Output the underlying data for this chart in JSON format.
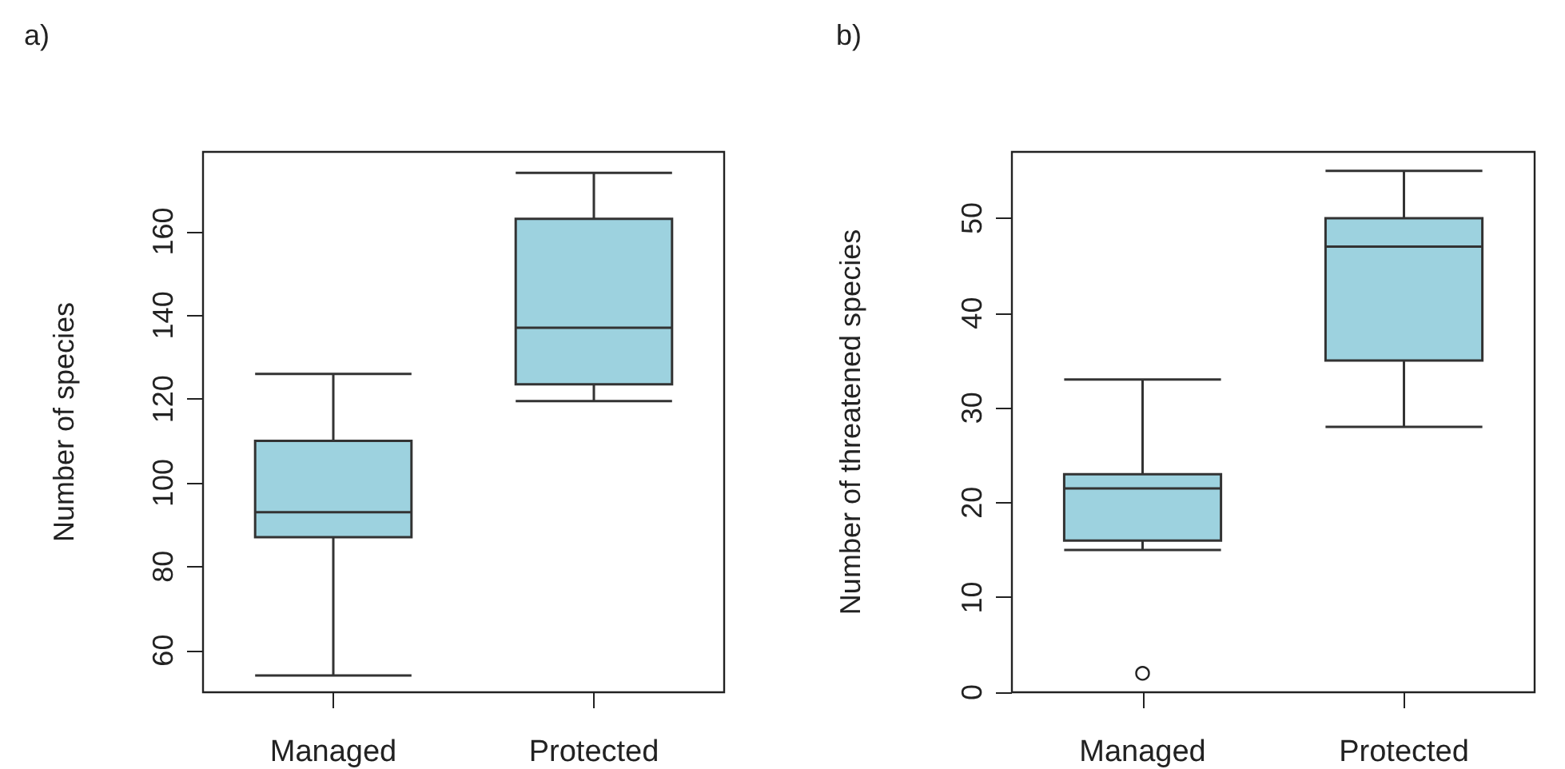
{
  "chart_data": [
    {
      "type": "box",
      "title": "a)",
      "ylabel": "Number of species",
      "categories": [
        "Managed",
        "Protected"
      ],
      "color": "#9dd2df",
      "boxes": [
        {
          "low": 54,
          "q1": 87,
          "median": 93,
          "q3": 110,
          "high": 126
        },
        {
          "low": 119.5,
          "q1": 123.5,
          "median": 137,
          "q3": 163,
          "high": 174
        }
      ],
      "ylim": [
        50,
        179
      ],
      "yticks": [
        60,
        80,
        100,
        120,
        140,
        160
      ]
    },
    {
      "type": "box",
      "title": "b)",
      "ylabel": "Number of threatened species",
      "categories": [
        "Managed",
        "Protected"
      ],
      "color": "#9dd2df",
      "boxes": [
        {
          "low": 15,
          "q1": 16,
          "median": 21.5,
          "q3": 23,
          "high": 33,
          "outliers": [
            2
          ]
        },
        {
          "low": 28,
          "q1": 35,
          "median": 47,
          "q3": 50,
          "high": 55
        }
      ],
      "ylim": [
        0,
        57
      ],
      "yticks": [
        0,
        10,
        20,
        30,
        40,
        50
      ]
    }
  ]
}
